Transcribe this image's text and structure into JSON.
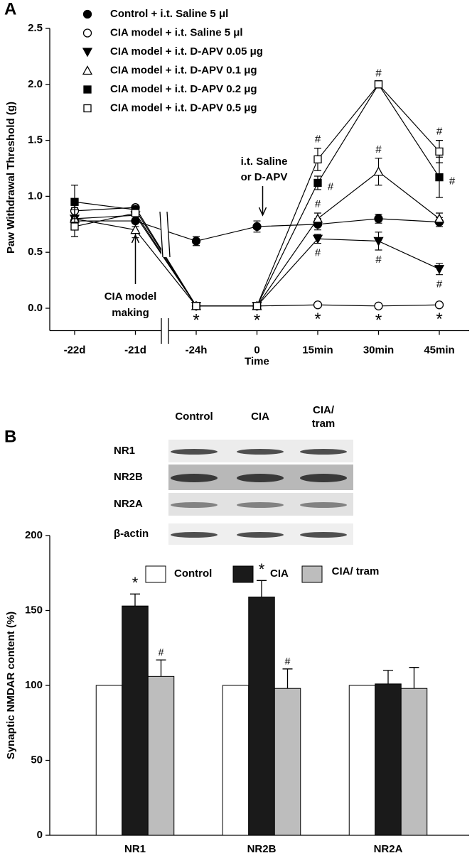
{
  "chart_data": [
    {
      "type": "line",
      "panel_label": "A",
      "y_label": "Paw Withdrawal Threshold (g)",
      "x_label": "Time",
      "categories": [
        "-22d",
        "-21d",
        "-24h",
        "0",
        "15min",
        "30min",
        "45min"
      ],
      "ylim": [
        -0.2,
        2.5
      ],
      "yticks": [
        {
          "value": 0,
          "label": "0.0"
        },
        0.5,
        {
          "value": 1,
          "label": "1.0"
        },
        1.5,
        {
          "value": 2,
          "label": "2.0"
        },
        2.5
      ],
      "series": [
        {
          "name": "Control + i.t. Saline 5 μl",
          "color": "#000000",
          "marker": "circle",
          "filled": true,
          "values": [
            0.78,
            0.78,
            0.6,
            0.73,
            0.75,
            0.8,
            0.77
          ],
          "errors": [
            0.07,
            0.05,
            0.04,
            0.05,
            0.05,
            0.04,
            0.04
          ]
        },
        {
          "name": "CIA model + i.t. Saline 5 μl",
          "color": "#000000",
          "marker": "circle",
          "filled": false,
          "values": [
            0.87,
            0.9,
            0.02,
            0.02,
            0.03,
            0.02,
            0.03
          ],
          "errors": [
            0.06,
            0.02,
            0.01,
            0.01,
            0.01,
            0.01,
            0.01
          ],
          "marks": [
            null,
            null,
            "*",
            "*",
            "*",
            "*",
            "*"
          ],
          "mark_side": "below"
        },
        {
          "name": "CIA model + i.t. D-APV 0.05 μg",
          "color": "#000000",
          "marker": "triangle-down",
          "filled": true,
          "values": [
            0.8,
            0.83,
            0.02,
            0.02,
            0.62,
            0.6,
            0.35
          ],
          "errors": [
            0.1,
            0.05,
            0.01,
            0.01,
            0.04,
            0.08,
            0.05
          ],
          "marks": [
            null,
            null,
            null,
            null,
            "#",
            "#",
            "#"
          ],
          "mark_side": "below"
        },
        {
          "name": "CIA model + i.t. D-APV 0.1 μg",
          "color": "#000000",
          "marker": "triangle-up",
          "filled": false,
          "values": [
            0.8,
            0.7,
            0.02,
            0.02,
            0.8,
            1.22,
            0.8
          ],
          "errors": [
            0.08,
            0.07,
            0.01,
            0.01,
            0.05,
            0.12,
            0.05
          ],
          "marks": [
            null,
            null,
            null,
            null,
            "#",
            "#",
            null
          ],
          "mark_side": "above"
        },
        {
          "name": "CIA model + i.t. D-APV 0.2 μg",
          "color": "#000000",
          "marker": "square",
          "filled": true,
          "values": [
            0.95,
            0.88,
            0.02,
            0.02,
            1.12,
            2.0,
            1.17
          ],
          "errors": [
            0.15,
            0.04,
            0.01,
            0.01,
            0.06,
            0.02,
            0.18
          ],
          "marks": [
            null,
            null,
            null,
            null,
            "#",
            null,
            "#"
          ],
          "mark_side": "right"
        },
        {
          "name": "CIA model + i.t. D-APV 0.5 μg",
          "color": "#000000",
          "marker": "square",
          "filled": false,
          "values": [
            0.73,
            0.85,
            0.02,
            0.02,
            1.33,
            2.0,
            1.4
          ],
          "errors": [
            0.09,
            0.05,
            0.01,
            0.01,
            0.1,
            0.02,
            0.1
          ],
          "marks": [
            null,
            null,
            null,
            null,
            "#",
            "#",
            "#"
          ],
          "mark_side": "above"
        }
      ],
      "annotations": [
        {
          "lines": [
            "i.t. Saline",
            "or D-APV"
          ],
          "category": "0"
        },
        {
          "lines": [
            "CIA model",
            "making"
          ],
          "category": "-21d"
        }
      ]
    },
    {
      "type": "bar",
      "panel_label": "B",
      "y_label": "Synaptic NMDAR content (%)",
      "categories": [
        "NR1",
        "NR2B",
        "NR2A"
      ],
      "ylim": [
        0,
        200
      ],
      "yticks": [
        0,
        50,
        100,
        150,
        200
      ],
      "series": [
        {
          "name": "Control",
          "color": "#ffffff",
          "values": [
            100,
            100,
            100
          ]
        },
        {
          "name": "CIA",
          "color": "#1a1a1a",
          "values": [
            153,
            159,
            101
          ],
          "errors": [
            8,
            11,
            9
          ],
          "marks": [
            "*",
            "*",
            null
          ]
        },
        {
          "name": "CIA/ tram",
          "color": "#bdbdbd",
          "values": [
            106,
            98,
            98
          ],
          "errors": [
            11,
            13,
            14
          ],
          "marks": [
            "#",
            "#",
            null
          ]
        }
      ],
      "blot": {
        "columns": [
          "Control",
          "CIA",
          "CIA/ tram"
        ],
        "rows": [
          "NR1",
          "NR2B",
          "NR2A",
          "β-actin"
        ]
      }
    }
  ]
}
